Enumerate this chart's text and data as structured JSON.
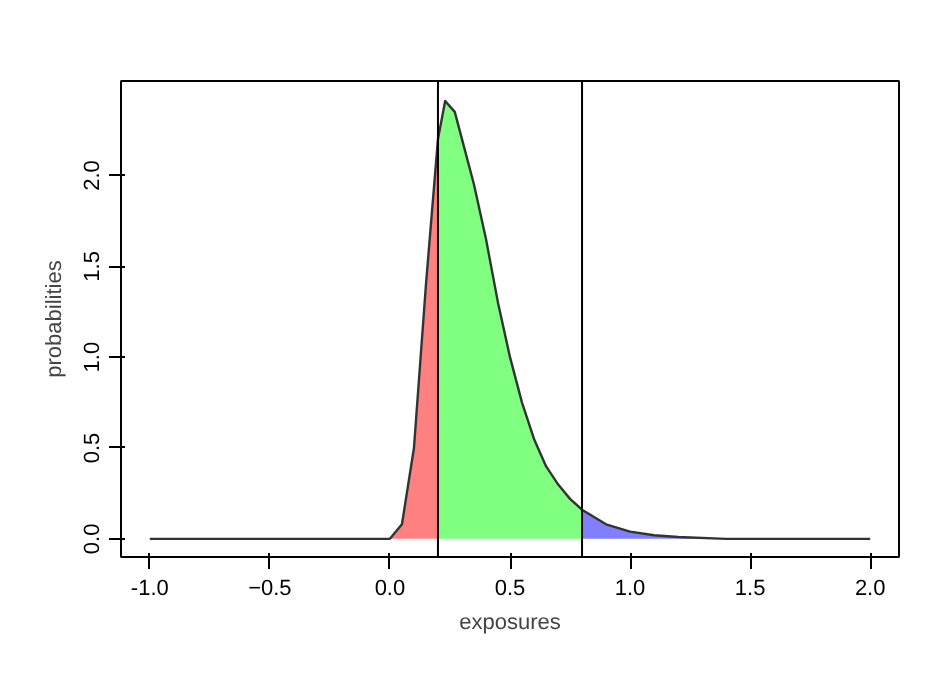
{
  "chart_data": {
    "type": "line",
    "xlabel": "exposures",
    "ylabel": "probabilities",
    "xlim": [
      -1.12,
      2.12
    ],
    "ylim": [
      -0.1,
      2.52
    ],
    "xticks": [
      {
        "value": -1,
        "label": "-1.0"
      },
      -0.5,
      {
        "value": 0,
        "label": "0.0"
      },
      0.5,
      {
        "value": 1,
        "label": "1.0"
      },
      1.5,
      {
        "value": 2,
        "label": "2.0"
      }
    ],
    "yticks": [
      {
        "value": 0,
        "label": "0.0"
      },
      0.5,
      {
        "value": 1,
        "label": "1.0"
      },
      1.5,
      {
        "value": 2,
        "label": "2.0"
      }
    ],
    "grid": false,
    "marker": "none",
    "line_style": "solid",
    "series": [
      {
        "type": "area",
        "color": "#ff8080",
        "x": [
          0.0,
          0.05,
          0.1,
          0.15,
          0.2
        ],
        "values": [
          0,
          0.08,
          0.5,
          1.4,
          2.2
        ]
      },
      {
        "type": "area",
        "color": "#80ff80",
        "x": [
          0.2,
          0.23,
          0.27,
          0.3,
          0.35,
          0.4,
          0.45,
          0.5,
          0.55,
          0.6,
          0.65,
          0.7,
          0.75,
          0.8
        ],
        "values": [
          2.2,
          2.41,
          2.35,
          2.2,
          1.95,
          1.65,
          1.3,
          1.0,
          0.75,
          0.55,
          0.4,
          0.3,
          0.22,
          0.16
        ]
      },
      {
        "type": "area",
        "color": "#8080ff",
        "x": [
          0.8,
          0.9,
          1.0,
          1.1,
          1.2,
          1.4
        ],
        "values": [
          0.16,
          0.08,
          0.04,
          0.02,
          0.01,
          0
        ]
      },
      {
        "color": "#333333",
        "x": [
          -1.0,
          0.0,
          0.05,
          0.1,
          0.15,
          0.2,
          0.23,
          0.27,
          0.3,
          0.35,
          0.4,
          0.45,
          0.5,
          0.55,
          0.6,
          0.65,
          0.7,
          0.75,
          0.8,
          0.9,
          1.0,
          1.1,
          1.2,
          1.4,
          2.0
        ],
        "values": [
          0,
          0,
          0.08,
          0.5,
          1.4,
          2.2,
          2.41,
          2.35,
          2.2,
          1.95,
          1.65,
          1.3,
          1.0,
          0.75,
          0.55,
          0.4,
          0.3,
          0.22,
          0.16,
          0.08,
          0.04,
          0.02,
          0.01,
          0,
          0
        ]
      }
    ],
    "ref_lines": [
      {
        "axis": "x",
        "value": 0.2,
        "color": "#000000"
      },
      {
        "axis": "x",
        "value": 0.8,
        "color": "#000000"
      }
    ]
  }
}
